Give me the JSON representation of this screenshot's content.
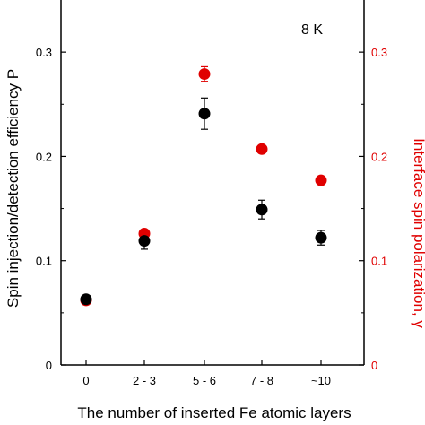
{
  "chart_data": {
    "type": "scatter",
    "annotation": "8 K",
    "xlabel": "The number of inserted Fe atomic layers",
    "categories": [
      "0",
      "2 - 3",
      "5 - 6",
      "7 - 8",
      "~10"
    ],
    "y_left": {
      "label": "Spin injection/detection efficiency P",
      "ylim": [
        0,
        0.35
      ],
      "ticks": [
        0,
        0.1,
        0.2,
        0.3
      ],
      "tick_labels": [
        "0",
        "0.1",
        "0.2",
        "0.3"
      ],
      "color": "#000000"
    },
    "y_right": {
      "label": "Interface spin polarization, γ",
      "ylim": [
        0,
        0.35
      ],
      "ticks": [
        0,
        0.1,
        0.2,
        0.3
      ],
      "tick_labels": [
        "0",
        "0.1",
        "0.2",
        "0.3"
      ],
      "color": "#e00000"
    },
    "series": [
      {
        "axis": "left",
        "color": "#000000",
        "values": [
          0.063,
          0.119,
          0.241,
          0.149,
          0.122
        ],
        "errors": [
          0.003,
          0.008,
          0.015,
          0.009,
          0.007
        ]
      },
      {
        "axis": "right",
        "color": "#e00000",
        "values": [
          0.062,
          0.126,
          0.279,
          0.207,
          0.177
        ],
        "errors": [
          0.002,
          0.003,
          0.007,
          0.002,
          0.002
        ]
      }
    ]
  }
}
